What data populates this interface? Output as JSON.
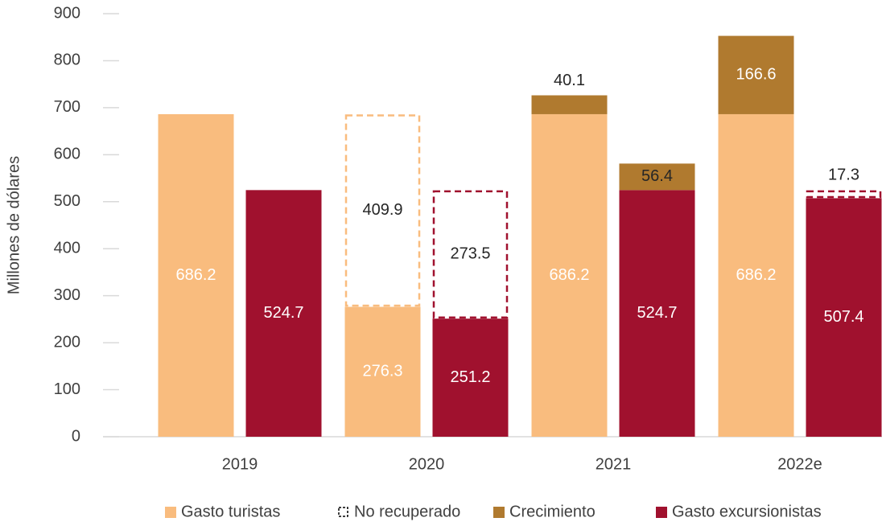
{
  "chart_data": {
    "type": "grouped-stacked-bar",
    "y_label": "Millones de dólares",
    "categories": [
      "2019",
      "2020",
      "2021",
      "2022e"
    ],
    "series": [
      {
        "name": "Gasto turistas",
        "color": "#f9bc7e",
        "values": [
          [
            686.2,
            null
          ],
          [
            276.3,
            null
          ],
          [
            686.2,
            null
          ],
          [
            686.2,
            null
          ]
        ]
      },
      {
        "name": "Gasto excursionistas",
        "color": "#a0112e",
        "values": [
          [
            null,
            524.7
          ],
          [
            null,
            251.2
          ],
          [
            null,
            524.7
          ],
          [
            null,
            507.4
          ]
        ]
      },
      {
        "name": "No recuperado",
        "color": "none",
        "dashed": true,
        "values": [
          [
            null,
            null
          ],
          [
            409.9,
            273.5
          ],
          [
            null,
            null
          ],
          [
            null,
            17.3
          ]
        ]
      },
      {
        "name": "Crecimiento",
        "color": "#b07a2f",
        "values": [
          [
            null,
            null
          ],
          [
            null,
            null
          ],
          [
            40.1,
            56.4
          ],
          [
            166.6,
            null
          ]
        ]
      }
    ],
    "legend_order": [
      0,
      2,
      3,
      1
    ],
    "ylim": [
      0,
      900
    ],
    "yticks": [
      0,
      100,
      200,
      300,
      400,
      500,
      600,
      700,
      800,
      900
    ]
  }
}
